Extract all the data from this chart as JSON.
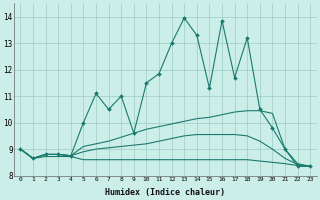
{
  "xlabel": "Humidex (Indice chaleur)",
  "x": [
    0,
    1,
    2,
    3,
    4,
    5,
    6,
    7,
    8,
    9,
    10,
    11,
    12,
    13,
    14,
    15,
    16,
    17,
    18,
    19,
    20,
    21,
    22,
    23
  ],
  "line1": [
    9.0,
    8.65,
    8.8,
    8.8,
    8.75,
    10.0,
    11.1,
    10.5,
    11.0,
    9.6,
    11.5,
    11.85,
    13.0,
    13.95,
    13.3,
    11.3,
    13.85,
    11.7,
    13.2,
    10.5,
    9.8,
    9.0,
    8.35,
    8.35
  ],
  "line2": [
    9.0,
    8.65,
    8.8,
    8.8,
    8.75,
    9.1,
    9.2,
    9.3,
    9.45,
    9.6,
    9.75,
    9.85,
    9.95,
    10.05,
    10.15,
    10.2,
    10.3,
    10.4,
    10.45,
    10.45,
    10.35,
    9.0,
    8.45,
    8.35
  ],
  "line3": [
    9.0,
    8.65,
    8.8,
    8.8,
    8.75,
    8.9,
    9.0,
    9.05,
    9.1,
    9.15,
    9.2,
    9.3,
    9.4,
    9.5,
    9.55,
    9.55,
    9.55,
    9.55,
    9.5,
    9.3,
    9.0,
    8.65,
    8.42,
    8.35
  ],
  "line4": [
    9.0,
    8.65,
    8.72,
    8.72,
    8.72,
    8.6,
    8.6,
    8.6,
    8.6,
    8.6,
    8.6,
    8.6,
    8.6,
    8.6,
    8.6,
    8.6,
    8.6,
    8.6,
    8.6,
    8.55,
    8.5,
    8.45,
    8.38,
    8.35
  ],
  "line_color": "#1a7a6e",
  "bg_color": "#cceee8",
  "grid_color": "#9eccc5",
  "ylim": [
    8.0,
    14.5
  ],
  "xlim": [
    -0.5,
    23.5
  ],
  "xtick_labels": [
    "0",
    "1",
    "2",
    "3",
    "4",
    "5",
    "6",
    "7",
    "8",
    "9",
    "10",
    "11",
    "12",
    "13",
    "14",
    "15",
    "16",
    "17",
    "18",
    "19",
    "20",
    "21",
    "22",
    "23"
  ],
  "ytick_labels": [
    "8",
    "9",
    "10",
    "11",
    "12",
    "13",
    "14"
  ],
  "yticks": [
    8,
    9,
    10,
    11,
    12,
    13,
    14
  ]
}
